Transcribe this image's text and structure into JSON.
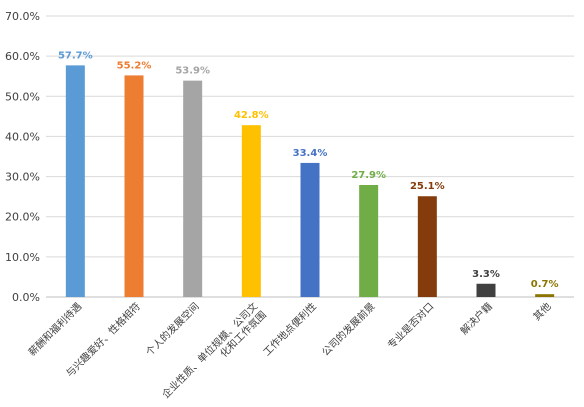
{
  "chart_data": {
    "type": "bar",
    "title": "",
    "xlabel": "",
    "ylabel": "",
    "ylim": [
      0,
      70
    ],
    "y_tick_step": 10,
    "y_tick_labels": [
      "0.0%",
      "10.0%",
      "20.0%",
      "30.0%",
      "40.0%",
      "50.0%",
      "60.0%",
      "70.0%"
    ],
    "grid": true,
    "legend": "none",
    "categories": [
      "薪酬和福利待遇",
      "与兴趣爱好、性格相符",
      "个人的发展空间",
      "企业性质、单位规模、公司文化和工作氛围",
      "工作地点便利性",
      "公司的发展前景",
      "专业是否对口",
      "解决户籍",
      "其他"
    ],
    "category_lines": [
      [
        "薪酬和福利待遇"
      ],
      [
        "与兴趣爱好、性格相符"
      ],
      [
        "个人的发展空间"
      ],
      [
        "企业性质、单位规模、公司文",
        "化和工作氛围"
      ],
      [
        "工作地点便利性"
      ],
      [
        "公司的发展前景"
      ],
      [
        "专业是否对口"
      ],
      [
        "解决户籍"
      ],
      [
        "其他"
      ]
    ],
    "values": [
      57.7,
      55.2,
      53.9,
      42.8,
      33.4,
      27.9,
      25.1,
      3.3,
      0.7
    ],
    "value_labels": [
      "57.7%",
      "55.2%",
      "53.9%",
      "42.8%",
      "33.4%",
      "27.9%",
      "25.1%",
      "3.3%",
      "0.7%"
    ],
    "colors": [
      "#5B9BD5",
      "#ED7D31",
      "#A5A5A5",
      "#FFC000",
      "#4472C4",
      "#70AD47",
      "#843C0C",
      "#404040",
      "#8B7500"
    ]
  }
}
